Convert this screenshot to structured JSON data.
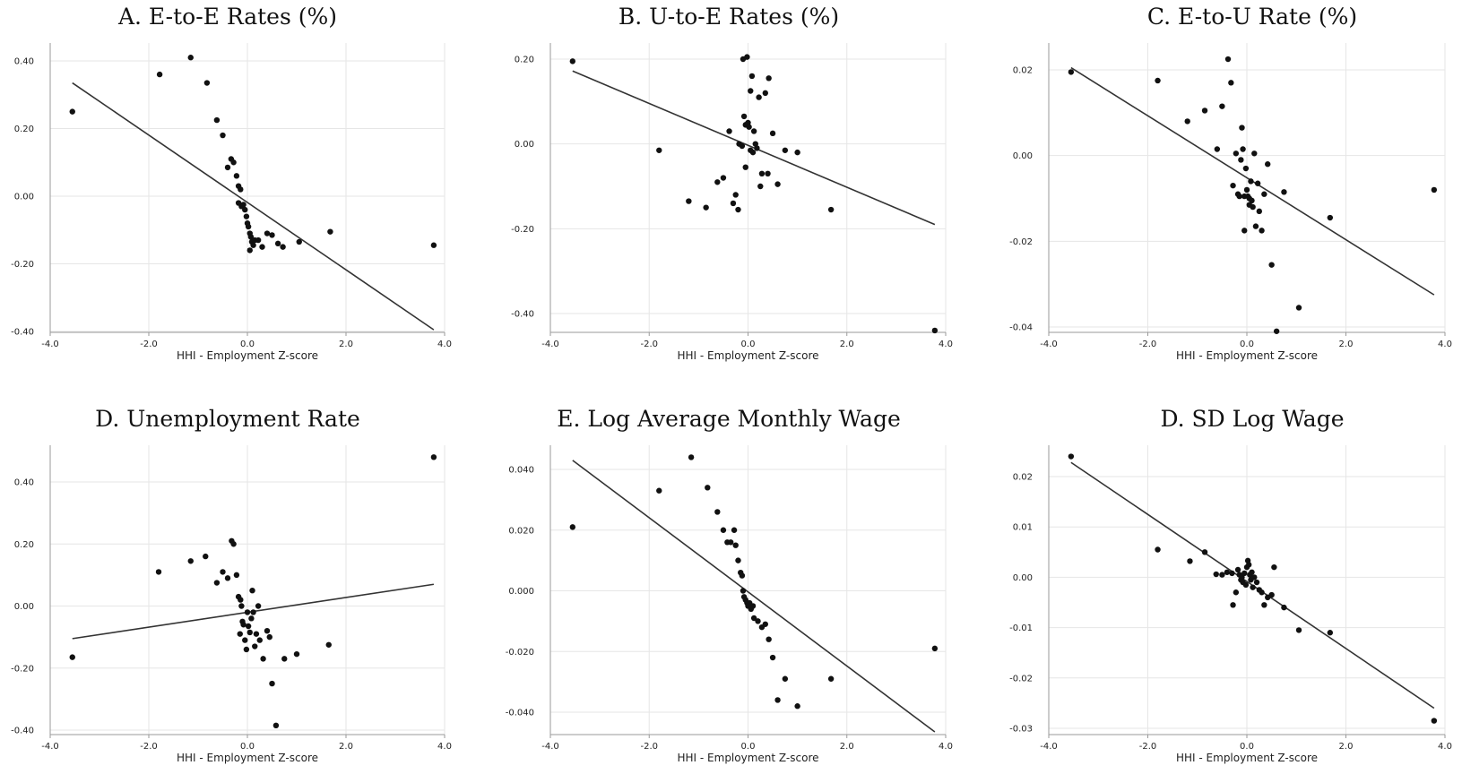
{
  "chart_data": [
    {
      "type": "scatter",
      "title": "A. E-to-E Rates (%)",
      "xlabel": "HHI - Employment Z-score",
      "ylabel": "",
      "xlim": [
        -4.0,
        4.0
      ],
      "ylim": [
        -0.4,
        0.4
      ],
      "x_ticks": [
        "-4.0",
        "-2.0",
        "0.0",
        "2.0",
        "4.0"
      ],
      "y_ticks": [
        "-0.40",
        "-0.20",
        "0.00",
        "0.20",
        "0.40"
      ],
      "grid": true,
      "fit_line": {
        "x": [
          -3.55,
          3.78
        ],
        "y": [
          0.335,
          -0.395
        ]
      },
      "points": [
        [
          -3.55,
          0.25
        ],
        [
          -1.78,
          0.36
        ],
        [
          -1.15,
          0.41
        ],
        [
          -0.82,
          0.335
        ],
        [
          -0.62,
          0.225
        ],
        [
          -0.5,
          0.18
        ],
        [
          -0.4,
          0.085
        ],
        [
          -0.33,
          0.11
        ],
        [
          -0.28,
          0.1
        ],
        [
          -0.22,
          0.06
        ],
        [
          -0.18,
          0.03
        ],
        [
          -0.14,
          0.02
        ],
        [
          -0.18,
          -0.02
        ],
        [
          -0.12,
          -0.03
        ],
        [
          -0.08,
          -0.025
        ],
        [
          -0.05,
          -0.04
        ],
        [
          -0.02,
          -0.06
        ],
        [
          0.0,
          -0.08
        ],
        [
          0.02,
          -0.09
        ],
        [
          0.05,
          -0.11
        ],
        [
          0.07,
          -0.12
        ],
        [
          0.09,
          -0.135
        ],
        [
          0.12,
          -0.145
        ],
        [
          0.15,
          -0.13
        ],
        [
          0.05,
          -0.16
        ],
        [
          0.22,
          -0.13
        ],
        [
          0.3,
          -0.15
        ],
        [
          0.4,
          -0.11
        ],
        [
          0.5,
          -0.115
        ],
        [
          0.62,
          -0.14
        ],
        [
          0.72,
          -0.15
        ],
        [
          1.05,
          -0.135
        ],
        [
          1.68,
          -0.105
        ],
        [
          3.78,
          -0.145
        ]
      ]
    },
    {
      "type": "scatter",
      "title": "B. U-to-E Rates (%)",
      "xlabel": "HHI - Employment Z-score",
      "ylabel": "",
      "xlim": [
        -4.0,
        4.0
      ],
      "ylim": [
        -0.45,
        0.22
      ],
      "x_ticks": [
        "-4.0",
        "-2.0",
        "0.0",
        "2.0",
        "4.0"
      ],
      "y_ticks": [
        "-0.40",
        "-0.20",
        "0.00",
        "0.20"
      ],
      "grid": true,
      "fit_line": {
        "x": [
          -3.55,
          3.78
        ],
        "y": [
          0.172,
          -0.19
        ]
      },
      "points": [
        [
          -3.55,
          0.195
        ],
        [
          -1.8,
          -0.015
        ],
        [
          -1.2,
          -0.135
        ],
        [
          -0.85,
          -0.15
        ],
        [
          -0.62,
          -0.09
        ],
        [
          -0.5,
          -0.08
        ],
        [
          -0.38,
          0.03
        ],
        [
          -0.3,
          -0.14
        ],
        [
          -0.25,
          -0.12
        ],
        [
          -0.2,
          -0.155
        ],
        [
          -0.18,
          0.0
        ],
        [
          -0.12,
          -0.005
        ],
        [
          -0.08,
          0.065
        ],
        [
          -0.05,
          0.045
        ],
        [
          -0.1,
          0.2
        ],
        [
          -0.02,
          0.205
        ],
        [
          0.0,
          0.05
        ],
        [
          0.02,
          0.04
        ],
        [
          0.05,
          0.125
        ],
        [
          0.08,
          0.16
        ],
        [
          0.1,
          -0.02
        ],
        [
          0.12,
          0.03
        ],
        [
          0.15,
          0.0
        ],
        [
          0.18,
          -0.01
        ],
        [
          0.22,
          0.11
        ],
        [
          0.25,
          -0.1
        ],
        [
          -0.05,
          -0.055
        ],
        [
          0.05,
          -0.015
        ],
        [
          0.28,
          -0.07
        ],
        [
          0.35,
          0.12
        ],
        [
          0.42,
          0.155
        ],
        [
          0.4,
          -0.07
        ],
        [
          0.5,
          0.025
        ],
        [
          0.6,
          -0.095
        ],
        [
          0.75,
          -0.015
        ],
        [
          1.0,
          -0.02
        ],
        [
          1.68,
          -0.155
        ],
        [
          3.78,
          -0.44
        ]
      ]
    },
    {
      "type": "scatter",
      "title": "C. E-to-U Rate (%)",
      "xlabel": "HHI - Employment Z-score",
      "ylabel": "",
      "xlim": [
        -4.0,
        4.0
      ],
      "ylim": [
        -0.042,
        0.023
      ],
      "x_ticks": [
        "-4.0",
        "-2.0",
        "0.0",
        "2.0",
        "4.0"
      ],
      "y_ticks": [
        "-0.04",
        "-0.02",
        "0.00",
        "0.02"
      ],
      "grid": true,
      "fit_line": {
        "x": [
          -3.55,
          3.78
        ],
        "y": [
          0.0205,
          -0.0325
        ]
      },
      "points": [
        [
          -3.55,
          0.0195
        ],
        [
          -1.8,
          0.0175
        ],
        [
          -1.2,
          0.008
        ],
        [
          -0.85,
          0.0105
        ],
        [
          -0.6,
          0.0015
        ],
        [
          -0.5,
          0.0115
        ],
        [
          -0.38,
          0.0225
        ],
        [
          -0.32,
          0.017
        ],
        [
          -0.28,
          -0.007
        ],
        [
          -0.22,
          0.0005
        ],
        [
          -0.18,
          -0.009
        ],
        [
          -0.15,
          -0.0095
        ],
        [
          -0.12,
          -0.001
        ],
        [
          -0.1,
          0.0065
        ],
        [
          -0.08,
          0.0015
        ],
        [
          -0.05,
          -0.0095
        ],
        [
          -0.02,
          -0.003
        ],
        [
          0.0,
          -0.008
        ],
        [
          0.02,
          -0.0095
        ],
        [
          0.05,
          -0.01
        ],
        [
          0.08,
          -0.006
        ],
        [
          0.1,
          -0.0105
        ],
        [
          0.12,
          -0.012
        ],
        [
          -0.05,
          -0.0175
        ],
        [
          0.05,
          -0.0115
        ],
        [
          0.15,
          0.0005
        ],
        [
          0.18,
          -0.0165
        ],
        [
          0.22,
          -0.0065
        ],
        [
          0.25,
          -0.013
        ],
        [
          0.3,
          -0.0175
        ],
        [
          0.35,
          -0.009
        ],
        [
          0.42,
          -0.002
        ],
        [
          0.5,
          -0.0255
        ],
        [
          0.6,
          -0.041
        ],
        [
          0.75,
          -0.0085
        ],
        [
          1.05,
          -0.0355
        ],
        [
          1.68,
          -0.0145
        ],
        [
          3.78,
          -0.008
        ]
      ]
    },
    {
      "type": "scatter",
      "title": "D. Unemployment Rate",
      "xlabel": "HHI - Employment Z-score",
      "ylabel": "",
      "xlim": [
        -4.0,
        4.0
      ],
      "ylim": [
        -0.4,
        0.5
      ],
      "x_ticks": [
        "-4.0",
        "-2.0",
        "0.0",
        "2.0",
        "4.0"
      ],
      "y_ticks": [
        "-0.40",
        "-0.20",
        "0.00",
        "0.20",
        "0.40"
      ],
      "grid": true,
      "fit_line": {
        "x": [
          -3.55,
          3.78
        ],
        "y": [
          -0.105,
          0.07
        ]
      },
      "points": [
        [
          -3.55,
          -0.165
        ],
        [
          -1.8,
          0.11
        ],
        [
          -1.15,
          0.145
        ],
        [
          -0.85,
          0.16
        ],
        [
          -0.62,
          0.075
        ],
        [
          -0.5,
          0.11
        ],
        [
          -0.4,
          0.09
        ],
        [
          -0.32,
          0.21
        ],
        [
          -0.28,
          0.2
        ],
        [
          -0.22,
          0.1
        ],
        [
          -0.18,
          0.03
        ],
        [
          -0.14,
          0.02
        ],
        [
          -0.12,
          0.0
        ],
        [
          -0.1,
          -0.05
        ],
        [
          -0.15,
          -0.09
        ],
        [
          -0.08,
          -0.06
        ],
        [
          -0.05,
          -0.11
        ],
        [
          -0.02,
          -0.14
        ],
        [
          0.0,
          -0.02
        ],
        [
          0.02,
          -0.065
        ],
        [
          0.05,
          -0.085
        ],
        [
          0.08,
          -0.04
        ],
        [
          0.1,
          0.05
        ],
        [
          0.12,
          -0.02
        ],
        [
          0.15,
          -0.13
        ],
        [
          0.18,
          -0.09
        ],
        [
          0.22,
          0.0
        ],
        [
          0.25,
          -0.11
        ],
        [
          0.32,
          -0.17
        ],
        [
          0.4,
          -0.08
        ],
        [
          0.45,
          -0.1
        ],
        [
          0.5,
          -0.25
        ],
        [
          0.58,
          -0.385
        ],
        [
          0.75,
          -0.17
        ],
        [
          1.0,
          -0.155
        ],
        [
          1.65,
          -0.125
        ],
        [
          3.78,
          0.48
        ]
      ]
    },
    {
      "type": "scatter",
      "title": "E. Log Average Monthly Wage",
      "xlabel": "HHI - Employment Z-score",
      "ylabel": "",
      "xlim": [
        -4.0,
        4.0
      ],
      "ylim": [
        -0.047,
        0.045
      ],
      "x_ticks": [
        "-4.0",
        "-2.0",
        "0.0",
        "2.0",
        "4.0"
      ],
      "y_ticks": [
        "-0.040",
        "-0.020",
        "0.000",
        "0.020",
        "0.040"
      ],
      "grid": true,
      "fit_line": {
        "x": [
          -3.55,
          3.78
        ],
        "y": [
          0.043,
          -0.0465
        ]
      },
      "points": [
        [
          -3.55,
          0.021
        ],
        [
          -1.8,
          0.033
        ],
        [
          -1.15,
          0.044
        ],
        [
          -0.82,
          0.034
        ],
        [
          -0.62,
          0.026
        ],
        [
          -0.5,
          0.02
        ],
        [
          -0.42,
          0.016
        ],
        [
          -0.35,
          0.016
        ],
        [
          -0.28,
          0.02
        ],
        [
          -0.25,
          0.015
        ],
        [
          -0.2,
          0.01
        ],
        [
          -0.15,
          0.006
        ],
        [
          -0.12,
          0.005
        ],
        [
          -0.1,
          0.0
        ],
        [
          -0.08,
          -0.002
        ],
        [
          -0.05,
          -0.003
        ],
        [
          -0.02,
          -0.004
        ],
        [
          0.0,
          -0.005
        ],
        [
          0.03,
          -0.004
        ],
        [
          0.06,
          -0.006
        ],
        [
          0.1,
          -0.005
        ],
        [
          0.12,
          -0.009
        ],
        [
          0.2,
          -0.01
        ],
        [
          0.28,
          -0.012
        ],
        [
          0.35,
          -0.011
        ],
        [
          0.42,
          -0.016
        ],
        [
          0.5,
          -0.022
        ],
        [
          0.6,
          -0.036
        ],
        [
          0.75,
          -0.029
        ],
        [
          1.0,
          -0.038
        ],
        [
          1.68,
          -0.029
        ],
        [
          3.78,
          -0.019
        ]
      ]
    },
    {
      "type": "scatter",
      "title": "D. SD Log Wage",
      "xlabel": "HHI - Employment Z-score",
      "ylabel": "",
      "xlim": [
        -4.0,
        4.0
      ],
      "ylim": [
        -0.031,
        0.025
      ],
      "x_ticks": [
        "-4.0",
        "-2.0",
        "0.0",
        "2.0",
        "4.0"
      ],
      "y_ticks": [
        "-0.03",
        "-0.02",
        "-0.01",
        "0.00",
        "0.01",
        "0.02"
      ],
      "grid": true,
      "fit_line": {
        "x": [
          -3.55,
          3.78
        ],
        "y": [
          0.0228,
          -0.026
        ]
      },
      "points": [
        [
          -3.55,
          0.024
        ],
        [
          -1.8,
          0.0055
        ],
        [
          -1.15,
          0.0032
        ],
        [
          -0.85,
          0.005
        ],
        [
          -0.62,
          0.0006
        ],
        [
          -0.5,
          0.0005
        ],
        [
          -0.4,
          0.001
        ],
        [
          -0.3,
          0.0008
        ],
        [
          -0.28,
          -0.0055
        ],
        [
          -0.22,
          -0.003
        ],
        [
          -0.18,
          0.0015
        ],
        [
          -0.15,
          0.0005
        ],
        [
          -0.12,
          -0.0005
        ],
        [
          -0.1,
          0.0
        ],
        [
          -0.08,
          -0.001
        ],
        [
          -0.05,
          0.0008
        ],
        [
          -0.02,
          -0.0015
        ],
        [
          0.0,
          0.002
        ],
        [
          0.02,
          0.0033
        ],
        [
          0.04,
          0.0025
        ],
        [
          0.06,
          0.0005
        ],
        [
          0.08,
          -0.0005
        ],
        [
          0.1,
          0.001
        ],
        [
          0.12,
          -0.002
        ],
        [
          0.15,
          0.0
        ],
        [
          0.2,
          -0.001
        ],
        [
          0.25,
          -0.0025
        ],
        [
          0.3,
          -0.003
        ],
        [
          0.35,
          -0.0055
        ],
        [
          0.42,
          -0.004
        ],
        [
          0.5,
          -0.0035
        ],
        [
          0.55,
          0.002
        ],
        [
          0.75,
          -0.006
        ],
        [
          1.05,
          -0.0105
        ],
        [
          1.68,
          -0.011
        ],
        [
          3.78,
          -0.0285
        ]
      ]
    }
  ]
}
